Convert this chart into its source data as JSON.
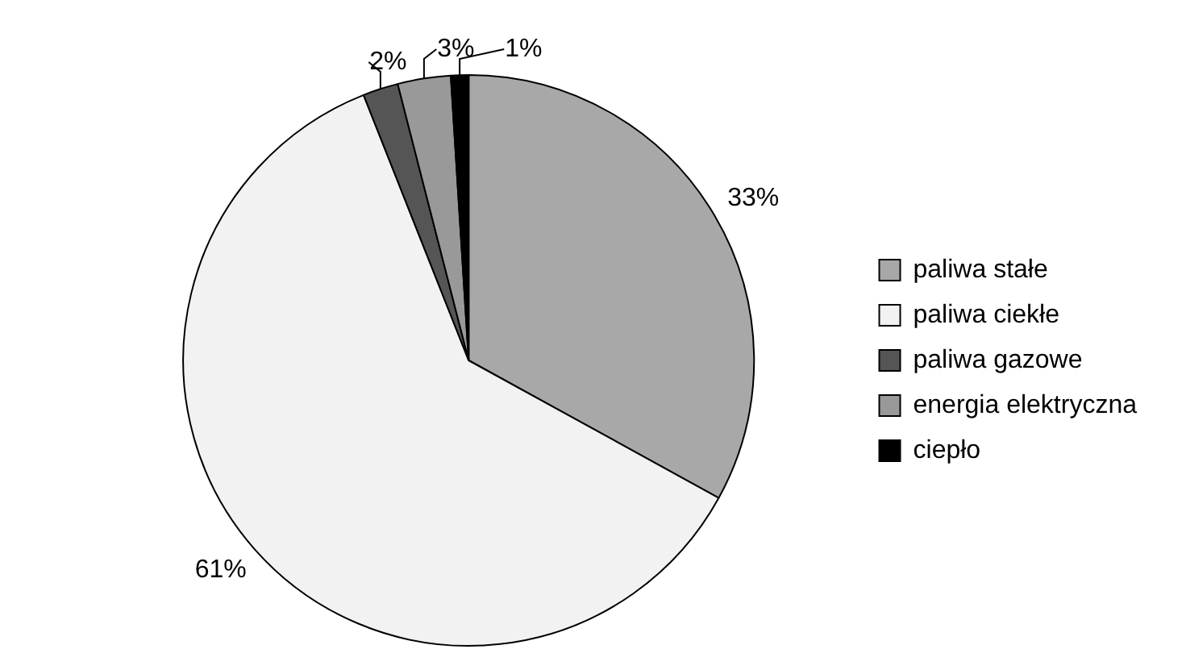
{
  "chart_data": {
    "type": "pie",
    "categories": [
      "paliwa stałe",
      "paliwa ciekłe",
      "paliwa gazowe",
      "energia elektryczna",
      "ciepło"
    ],
    "values": [
      33,
      61,
      2,
      3,
      1
    ],
    "colors": [
      "#a8a8a8",
      "#f2f2f2",
      "#555555",
      "#999999",
      "#000000"
    ],
    "value_labels": [
      "33%",
      "61%",
      "2%",
      "3%",
      "1%"
    ],
    "legend": "right"
  }
}
